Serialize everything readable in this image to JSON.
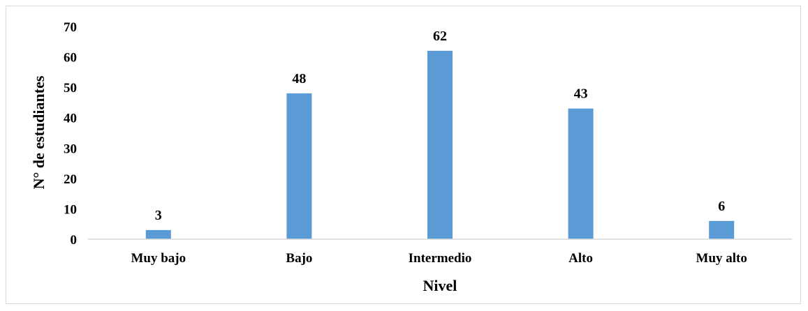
{
  "chart_data": {
    "type": "bar",
    "title": "",
    "xlabel": "Nivel",
    "ylabel": "N° de estudiantes",
    "categories": [
      "Muy bajo",
      "Bajo",
      "Intermedio",
      "Alto",
      "Muy alto"
    ],
    "series": [
      {
        "values": [
          3,
          48,
          62,
          43,
          6
        ]
      }
    ],
    "ylim": [
      0,
      70
    ],
    "yticks": [
      "0",
      "10",
      "20",
      "30",
      "40",
      "50",
      "60",
      "70"
    ],
    "data_labels": [
      "3",
      "48",
      "62",
      "43",
      "6"
    ],
    "grid": false,
    "legend": "none",
    "bar_color": "#5b9bd5"
  }
}
